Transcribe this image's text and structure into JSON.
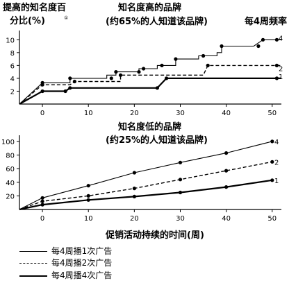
{
  "header": {
    "ylabel_line1": "提高的知名度百",
    "ylabel_line2": "分比(%)",
    "footnote_mark": "①",
    "top_title_line1": "知名度高的品牌",
    "top_title_line2": "(约65%的人知道该品牌)",
    "freq_label": "每4周频率"
  },
  "middle": {
    "title_line1": "知名度低的品牌",
    "title_line2": "(约25%的人知道该品牌)"
  },
  "xlabel": "促销活动持续的时间(周)",
  "legend": [
    {
      "label": "每4周播1次广告",
      "style": "thin"
    },
    {
      "label": "每4周播2次广告",
      "style": "dashed"
    },
    {
      "label": "每4周播4次广告",
      "style": "thick"
    }
  ],
  "chart_data": [
    {
      "type": "line",
      "title": "知名度高的品牌 (约65%的人知道该品牌)",
      "xlim": [
        -5,
        52
      ],
      "ylim": [
        0,
        11
      ],
      "xticks": [
        0,
        10,
        20,
        30,
        40,
        50
      ],
      "yticks": [
        2,
        4,
        6,
        8,
        10
      ],
      "series": [
        {
          "name": "4",
          "style": "thin",
          "points": [
            [
              -5,
              0
            ],
            [
              0,
              3.3
            ],
            [
              6,
              3.3
            ],
            [
              6,
              4
            ],
            [
              14,
              4
            ],
            [
              14,
              4.5
            ],
            [
              16,
              4.5
            ],
            [
              16,
              5
            ],
            [
              21,
              5
            ],
            [
              21,
              5.5
            ],
            [
              25,
              5.5
            ],
            [
              25,
              6
            ],
            [
              29,
              6
            ],
            [
              29,
              7
            ],
            [
              34,
              7
            ],
            [
              34,
              7.5
            ],
            [
              38,
              7.5
            ],
            [
              38,
              8
            ],
            [
              39,
              8
            ],
            [
              39,
              9
            ],
            [
              46,
              9
            ],
            [
              46,
              9
            ],
            [
              48,
              10
            ],
            [
              52,
              10
            ]
          ],
          "markers": [
            [
              0,
              3.3
            ],
            [
              6,
              4
            ],
            [
              15,
              4
            ],
            [
              16,
              5
            ],
            [
              21,
              5
            ],
            [
              22,
              5.5
            ],
            [
              26,
              6
            ],
            [
              29,
              7
            ],
            [
              35,
              7.5
            ],
            [
              39,
              9
            ],
            [
              47,
              9
            ],
            [
              48,
              10
            ],
            [
              51,
              10
            ]
          ]
        },
        {
          "name": "2",
          "style": "dashed",
          "points": [
            [
              -5,
              0
            ],
            [
              0,
              3
            ],
            [
              6,
              3
            ],
            [
              7,
              3.5
            ],
            [
              17,
              3.5
            ],
            [
              17,
              4.5
            ],
            [
              35,
              4.5
            ],
            [
              36,
              6
            ],
            [
              52,
              6
            ]
          ],
          "markers": [
            [
              0,
              3
            ],
            [
              7,
              3.5
            ],
            [
              17,
              4.5
            ],
            [
              36,
              6
            ],
            [
              51,
              6
            ]
          ]
        },
        {
          "name": "1",
          "style": "thick",
          "points": [
            [
              -5,
              0
            ],
            [
              0,
              2
            ],
            [
              5,
              2
            ],
            [
              6,
              2.5
            ],
            [
              25,
              2.5
            ],
            [
              27,
              4
            ],
            [
              52,
              4
            ]
          ],
          "markers": [
            [
              0,
              2
            ],
            [
              5,
              2
            ],
            [
              6,
              2.5
            ],
            [
              25,
              2.5
            ],
            [
              27,
              4
            ],
            [
              51,
              4
            ]
          ]
        }
      ]
    },
    {
      "type": "line",
      "title": "知名度低的品牌 (约25%的人知道该品牌)",
      "xlim": [
        -5,
        52
      ],
      "ylim": [
        0,
        105
      ],
      "xticks": [
        0,
        10,
        20,
        30,
        40,
        50
      ],
      "yticks": [
        20,
        40,
        60,
        80,
        100
      ],
      "series": [
        {
          "name": "4",
          "style": "thin",
          "points": [
            [
              -5,
              0
            ],
            [
              0,
              17
            ],
            [
              10,
              35
            ],
            [
              20,
              54
            ],
            [
              30,
              69
            ],
            [
              40,
              83
            ],
            [
              50,
              100
            ]
          ],
          "markers": [
            [
              0,
              17
            ],
            [
              10,
              35
            ],
            [
              20,
              54
            ],
            [
              30,
              69
            ],
            [
              40,
              83
            ],
            [
              50,
              100
            ]
          ]
        },
        {
          "name": "2",
          "style": "dashed",
          "points": [
            [
              -5,
              0
            ],
            [
              0,
              12
            ],
            [
              10,
              20
            ],
            [
              20,
              31
            ],
            [
              30,
              44
            ],
            [
              40,
              57
            ],
            [
              50,
              70
            ]
          ],
          "markers": [
            [
              0,
              12
            ],
            [
              10,
              20
            ],
            [
              20,
              31
            ],
            [
              30,
              44
            ],
            [
              40,
              57
            ],
            [
              50,
              70
            ]
          ]
        },
        {
          "name": "1",
          "style": "thick",
          "points": [
            [
              -5,
              0
            ],
            [
              0,
              7
            ],
            [
              10,
              14
            ],
            [
              20,
              19
            ],
            [
              30,
              25
            ],
            [
              40,
              33
            ],
            [
              50,
              43
            ]
          ],
          "markers": [
            [
              0,
              7
            ],
            [
              10,
              14
            ],
            [
              20,
              19
            ],
            [
              30,
              25
            ],
            [
              40,
              33
            ],
            [
              50,
              43
            ]
          ]
        }
      ]
    }
  ]
}
